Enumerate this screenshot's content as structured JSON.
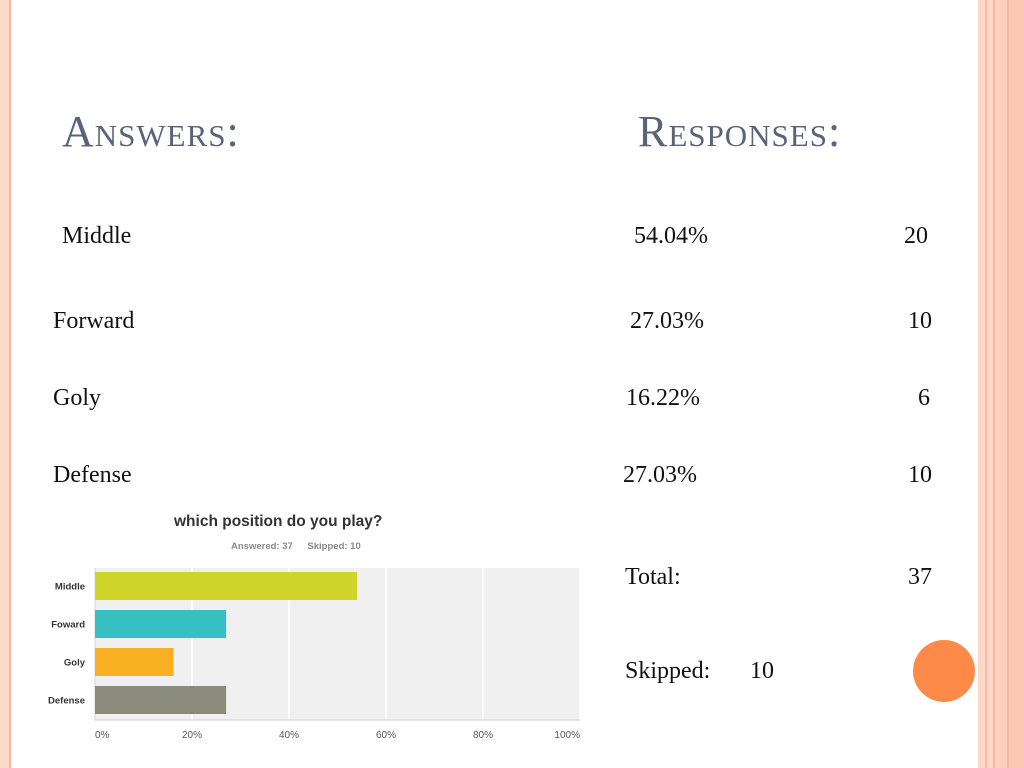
{
  "headings": {
    "answers": "Answers:",
    "responses": "Responses:"
  },
  "rows": [
    {
      "answer": "Middle",
      "percent": "54.04%",
      "count": "20"
    },
    {
      "answer": "Forward",
      "percent": "27.03%",
      "count": "10"
    },
    {
      "answer": "Goly",
      "percent": "16.22%",
      "count": "6"
    },
    {
      "answer": "Defense",
      "percent": "27.03%",
      "count": "10"
    }
  ],
  "total": {
    "label": "Total:",
    "value": "37"
  },
  "skipped": {
    "label": "Skipped:",
    "value": "10"
  },
  "chart_data": {
    "type": "bar",
    "orientation": "horizontal",
    "title": "which position do you play?",
    "subtitle": {
      "answered": "Answered: 37",
      "skipped": "Skipped: 10"
    },
    "categories": [
      "Middle",
      "Foward",
      "Goly",
      "Defense"
    ],
    "values": [
      54.04,
      27.03,
      16.22,
      27.03
    ],
    "colors": [
      "#cfd52a",
      "#36c0c2",
      "#f6b022",
      "#8a8b7c"
    ],
    "xticks": [
      "0%",
      "20%",
      "40%",
      "60%",
      "80%",
      "100%"
    ],
    "xlim": [
      0,
      100
    ],
    "grid": true,
    "legend": "none"
  },
  "colors": {
    "heading": "#5a6478",
    "accent_circle": "#fd8a49",
    "plot_bg": "#f0f0f0"
  }
}
